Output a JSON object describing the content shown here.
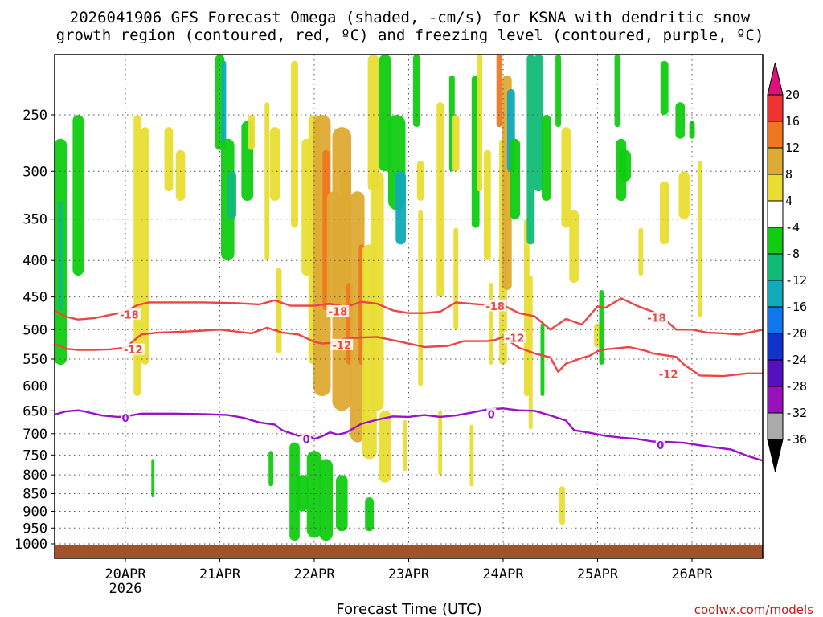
{
  "title": {
    "line1": "2026041906 GFS Forecast Omega (shaded, -cm/s) for KSNA with dendritic snow",
    "line2": "growth region (contoured, red, ºC) and freezing level (contoured, purple, ºC)"
  },
  "credit": "coolwx.com/models",
  "chart_data": {
    "type": "time-height cross section",
    "title": "2026041906 GFS Forecast Omega (shaded, -cm/s) for KSNA with dendritic snow growth region (contoured, red, ºC) and freezing level (contoured, purple, ºC)",
    "xlabel": "Forecast Time (UTC)",
    "ylabel": "",
    "x_range_hours": [
      6,
      186
    ],
    "y_range_hpa": [
      1020,
      200
    ],
    "x_ticks": [
      {
        "hour": 24,
        "label": "20APR",
        "sublabel": "2026"
      },
      {
        "hour": 48,
        "label": "21APR"
      },
      {
        "hour": 72,
        "label": "22APR"
      },
      {
        "hour": 96,
        "label": "23APR"
      },
      {
        "hour": 120,
        "label": "24APR"
      },
      {
        "hour": 144,
        "label": "25APR"
      },
      {
        "hour": 168,
        "label": "26APR"
      }
    ],
    "y_ticks": [
      {
        "p": 250,
        "label": "250"
      },
      {
        "p": 300,
        "label": "300"
      },
      {
        "p": 350,
        "label": "350"
      },
      {
        "p": 400,
        "label": "400"
      },
      {
        "p": 450,
        "label": "450"
      },
      {
        "p": 500,
        "label": "500"
      },
      {
        "p": 550,
        "label": "550"
      },
      {
        "p": 600,
        "label": "600"
      },
      {
        "p": 650,
        "label": "650"
      },
      {
        "p": 700,
        "label": "700"
      },
      {
        "p": 750,
        "label": "750"
      },
      {
        "p": 800,
        "label": "800"
      },
      {
        "p": 850,
        "label": "850"
      },
      {
        "p": 900,
        "label": "900"
      },
      {
        "p": 950,
        "label": "950"
      },
      {
        "p": 1000,
        "label": "1000"
      }
    ],
    "colorbar": {
      "labels": [
        "20",
        "16",
        "12",
        "8",
        "4",
        "-4",
        "-8",
        "-12",
        "-16",
        "-20",
        "-24",
        "-28",
        "-32",
        "-36"
      ],
      "colors": [
        "#dd1177",
        "#ee3333",
        "#ee7722",
        "#ddaa33",
        "#e8dd33",
        "#ffffff",
        "#11cc11",
        "#11bb77",
        "#11aabb",
        "#1177ee",
        "#1133cc",
        "#5511bb",
        "#9911bb",
        "#aaaaaa",
        "#000000"
      ]
    },
    "surface_color": "#a0522d",
    "contours": [
      {
        "name": "dgz -18C",
        "color": "#ee4444",
        "label": "-18",
        "label_positions": [
          {
            "hour": 25,
            "p": 477
          },
          {
            "hour": 78,
            "p": 472
          },
          {
            "hour": 118,
            "p": 464
          },
          {
            "hour": 159,
            "p": 482
          }
        ],
        "points": [
          [
            6,
            470
          ],
          [
            9,
            480
          ],
          [
            12,
            484
          ],
          [
            16,
            482
          ],
          [
            20,
            477
          ],
          [
            24,
            472
          ],
          [
            27,
            462
          ],
          [
            30,
            458
          ],
          [
            36,
            458
          ],
          [
            44,
            458
          ],
          [
            52,
            459
          ],
          [
            58,
            461
          ],
          [
            62,
            455
          ],
          [
            66,
            463
          ],
          [
            72,
            463
          ],
          [
            76,
            460
          ],
          [
            80,
            465
          ],
          [
            84,
            457
          ],
          [
            88,
            460
          ],
          [
            92,
            470
          ],
          [
            96,
            474
          ],
          [
            100,
            474
          ],
          [
            104,
            472
          ],
          [
            108,
            458
          ],
          [
            114,
            461
          ],
          [
            120,
            462
          ],
          [
            124,
            474
          ],
          [
            128,
            479
          ],
          [
            132,
            500
          ],
          [
            136,
            483
          ],
          [
            140,
            492
          ],
          [
            144,
            464
          ],
          [
            146,
            466
          ],
          [
            150,
            452
          ],
          [
            154,
            463
          ],
          [
            158,
            472
          ],
          [
            160,
            478
          ],
          [
            164,
            500
          ],
          [
            168,
            500
          ],
          [
            172,
            505
          ],
          [
            176,
            506
          ],
          [
            180,
            508
          ],
          [
            186,
            500
          ]
        ]
      },
      {
        "name": "dgz -12C",
        "color": "#ee4444",
        "label": "-12",
        "label_positions": [
          {
            "hour": 26,
            "p": 534
          },
          {
            "hour": 79,
            "p": 526
          },
          {
            "hour": 123,
            "p": 514
          },
          {
            "hour": 162,
            "p": 578
          }
        ],
        "points": [
          [
            6,
            523
          ],
          [
            9,
            532
          ],
          [
            12,
            534
          ],
          [
            16,
            534
          ],
          [
            20,
            533
          ],
          [
            24,
            530
          ],
          [
            28,
            508
          ],
          [
            32,
            505
          ],
          [
            40,
            503
          ],
          [
            48,
            500
          ],
          [
            52,
            503
          ],
          [
            56,
            506
          ],
          [
            60,
            497
          ],
          [
            64,
            505
          ],
          [
            68,
            508
          ],
          [
            72,
            520
          ],
          [
            74,
            523
          ],
          [
            76,
            522
          ],
          [
            80,
            515
          ],
          [
            84,
            513
          ],
          [
            88,
            512
          ],
          [
            94,
            520
          ],
          [
            100,
            529
          ],
          [
            106,
            527
          ],
          [
            110,
            519
          ],
          [
            116,
            519
          ],
          [
            118,
            517
          ],
          [
            120,
            512
          ],
          [
            124,
            530
          ],
          [
            128,
            540
          ],
          [
            132,
            547
          ],
          [
            134,
            573
          ],
          [
            136,
            558
          ],
          [
            140,
            548
          ],
          [
            142,
            544
          ],
          [
            144,
            536
          ],
          [
            146,
            533
          ],
          [
            152,
            529
          ],
          [
            156,
            535
          ],
          [
            158,
            540
          ],
          [
            164,
            546
          ],
          [
            166,
            560
          ],
          [
            170,
            580
          ],
          [
            176,
            581
          ],
          [
            182,
            576
          ],
          [
            186,
            576
          ]
        ]
      },
      {
        "name": "freezing level 0C",
        "color": "#9911cc",
        "label": "0",
        "label_positions": [
          {
            "hour": 24,
            "p": 666
          },
          {
            "hour": 70,
            "p": 713
          },
          {
            "hour": 117,
            "p": 658
          },
          {
            "hour": 160,
            "p": 727
          }
        ],
        "points": [
          [
            6,
            658
          ],
          [
            9,
            651
          ],
          [
            12,
            649
          ],
          [
            14,
            652
          ],
          [
            18,
            660
          ],
          [
            22,
            663
          ],
          [
            24,
            662
          ],
          [
            28,
            656
          ],
          [
            36,
            656
          ],
          [
            44,
            657
          ],
          [
            50,
            659
          ],
          [
            54,
            665
          ],
          [
            58,
            675
          ],
          [
            62,
            680
          ],
          [
            64,
            693
          ],
          [
            68,
            705
          ],
          [
            70,
            701
          ],
          [
            72,
            712
          ],
          [
            74,
            706
          ],
          [
            76,
            697
          ],
          [
            78,
            702
          ],
          [
            80,
            698
          ],
          [
            84,
            678
          ],
          [
            88,
            669
          ],
          [
            92,
            662
          ],
          [
            96,
            663
          ],
          [
            100,
            659
          ],
          [
            104,
            663
          ],
          [
            108,
            660
          ],
          [
            112,
            654
          ],
          [
            116,
            647
          ],
          [
            120,
            645
          ],
          [
            124,
            649
          ],
          [
            128,
            650
          ],
          [
            132,
            660
          ],
          [
            136,
            671
          ],
          [
            138,
            692
          ],
          [
            142,
            698
          ],
          [
            146,
            705
          ],
          [
            150,
            709
          ],
          [
            154,
            712
          ],
          [
            158,
            718
          ],
          [
            162,
            719
          ],
          [
            166,
            721
          ],
          [
            170,
            727
          ],
          [
            174,
            732
          ],
          [
            178,
            737
          ],
          [
            182,
            752
          ],
          [
            186,
            764
          ]
        ]
      }
    ]
  }
}
